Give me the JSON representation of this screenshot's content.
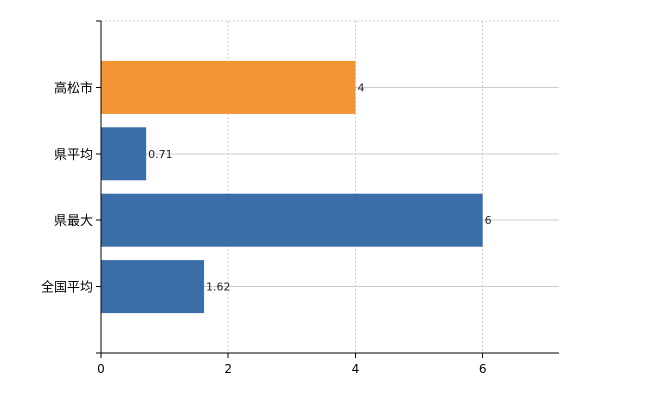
{
  "chart_data": {
    "type": "bar",
    "orientation": "horizontal",
    "categories": [
      "高松市",
      "県平均",
      "県最大",
      "全国平均"
    ],
    "values": [
      4,
      0.71,
      6,
      1.62
    ],
    "value_labels": [
      "4",
      "0.71",
      "6",
      "1.62"
    ],
    "bar_colors": [
      "#f39435",
      "#3a6ea8",
      "#3a6ea8",
      "#3a6ea8"
    ],
    "x_ticks": [
      0,
      2,
      4,
      6
    ],
    "x_tick_labels": [
      "0",
      "2",
      "4",
      "6"
    ],
    "xlim": [
      0,
      7.2
    ],
    "grid": true,
    "title": "",
    "xlabel": "",
    "ylabel": ""
  }
}
